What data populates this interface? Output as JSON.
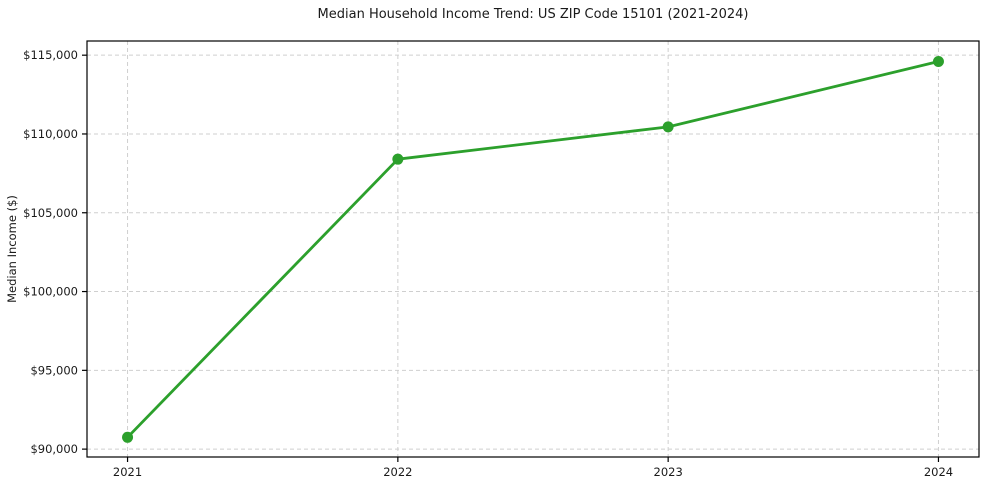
{
  "chart_data": {
    "type": "line",
    "title": "Median Household Income Trend: US ZIP Code 15101 (2021-2024)",
    "xlabel": "",
    "ylabel": "Median Income ($)",
    "x": [
      2021,
      2022,
      2023,
      2024
    ],
    "categories": [
      "2021",
      "2022",
      "2023",
      "2024"
    ],
    "series": [
      {
        "name": "Median Household Income",
        "values": [
          90750,
          108400,
          110450,
          114600
        ],
        "color": "#2ca02c"
      }
    ],
    "xlim": [
      2020.85,
      2024.15
    ],
    "ylim": [
      89500,
      115900
    ],
    "yticks": [
      90000,
      95000,
      100000,
      105000,
      110000,
      115000
    ],
    "ytick_labels": [
      "$90,000",
      "$95,000",
      "$100,000",
      "$105,000",
      "$110,000",
      "$115,000"
    ],
    "xticks": [
      2021,
      2022,
      2023,
      2024
    ],
    "xtick_labels": [
      "2021",
      "2022",
      "2023",
      "2024"
    ],
    "grid": true,
    "grid_style": "dashed",
    "legend": false,
    "marker": "circle",
    "colors": {
      "line": "#2ca02c",
      "grid": "#cfcfcf",
      "axis": "#000000",
      "text": "#1a1a1a",
      "background": "#ffffff"
    }
  }
}
